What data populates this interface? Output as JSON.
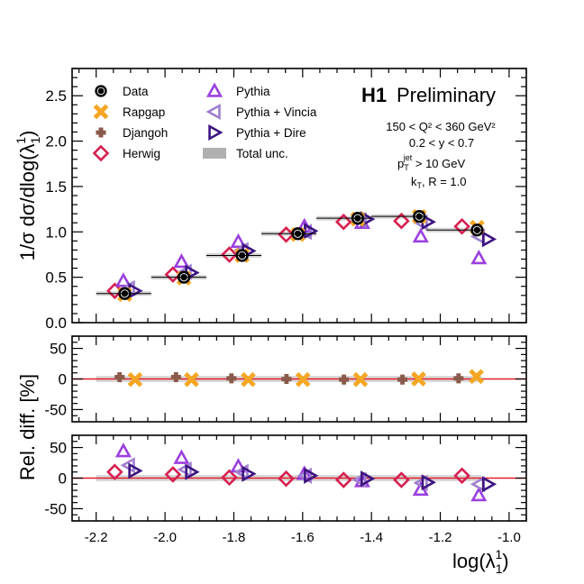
{
  "figure": {
    "brand": "H1",
    "status": "Preliminary",
    "cuts": [
      "150 < Q² < 360 GeV²",
      "0.2 < y < 0.7",
      "p_T^jet > 10 GeV",
      "k_T, R = 1.0"
    ],
    "cut_labels": {
      "q2": "150 < Q² < 360 GeV²",
      "y": "0.2 < y < 0.7",
      "pt_main": "p",
      "pt_sub": "T",
      "pt_sup": "jet",
      "pt_rest": " > 10 GeV",
      "kt_main": "k",
      "kt_sub": "T",
      "kt_rest": ", R = 1.0"
    }
  },
  "chart_data": [
    {
      "type": "scatter",
      "panel": "top",
      "ylabel": "1/σ dσ/dlog(λ₁¹)",
      "ylabel_parts": {
        "pre": "1/σ dσ/dlog(λ",
        "sub": "1",
        "sup": "1",
        "post": ")"
      },
      "ylim": [
        0,
        2.8
      ],
      "yticks": [
        "0.0",
        "0.5",
        "1.0",
        "1.5",
        "2.0",
        "2.5"
      ],
      "xlim": [
        -2.27,
        -0.95
      ],
      "bins": [
        [
          -2.2,
          -2.04
        ],
        [
          -2.04,
          -1.88
        ],
        [
          -1.88,
          -1.72
        ],
        [
          -1.72,
          -1.56
        ],
        [
          -1.56,
          -1.4
        ],
        [
          -1.4,
          -1.24
        ],
        [
          -1.24,
          -1.08
        ]
      ],
      "legend": [
        {
          "name": "Data",
          "symbol": "data"
        },
        {
          "name": "Rapgap",
          "symbol": "x"
        },
        {
          "name": "Djangoh",
          "symbol": "plus"
        },
        {
          "name": "Herwig",
          "symbol": "diamond"
        },
        {
          "name": "Pythia",
          "symbol": "tri-up"
        },
        {
          "name": "Pythia + Vincia",
          "symbol": "tri-left"
        },
        {
          "name": "Pythia + Dire",
          "symbol": "tri-right"
        },
        {
          "name": "Total unc.",
          "symbol": "band"
        }
      ],
      "colors": {
        "Data": "#000000",
        "Rapgap": "#f5a623",
        "Djangoh": "#8b5a4a",
        "Herwig": "#d62050",
        "Pythia": "#9b40e0",
        "Pythia + Vincia": "#a080d0",
        "Pythia + Dire": "#3d1480",
        "Total unc.": "#b0b0b0"
      },
      "series": [
        {
          "name": "Data",
          "x": [
            -2.117,
            -1.945,
            -1.776,
            -1.614,
            -1.44,
            -1.261,
            -1.093
          ],
          "values": [
            0.32,
            0.5,
            0.74,
            0.98,
            1.15,
            1.17,
            1.02
          ]
        },
        {
          "name": "Rapgap",
          "x": [
            -2.117,
            -1.945,
            -1.776,
            -1.614,
            -1.44,
            -1.261,
            -1.093
          ],
          "values": [
            0.31,
            0.49,
            0.74,
            0.97,
            1.14,
            1.17,
            1.05
          ]
        },
        {
          "name": "Djangoh",
          "x": [
            -2.117,
            -1.945,
            -1.776,
            -1.614,
            -1.44,
            -1.261,
            -1.093
          ],
          "values": [
            0.32,
            0.5,
            0.74,
            0.98,
            1.15,
            1.17,
            1.02
          ]
        },
        {
          "name": "Herwig",
          "x": [
            -2.146,
            -1.977,
            -1.813,
            -1.648,
            -1.481,
            -1.313,
            -1.137
          ],
          "values": [
            0.35,
            0.53,
            0.75,
            0.97,
            1.11,
            1.12,
            1.06
          ]
        },
        {
          "name": "Pythia",
          "x": [
            -2.121,
            -1.952,
            -1.787,
            -1.595,
            -1.427,
            -1.257,
            -1.088
          ],
          "values": [
            0.46,
            0.67,
            0.89,
            1.06,
            1.1,
            0.95,
            0.71
          ]
        },
        {
          "name": "Pythia + Vincia",
          "x": [
            -2.105,
            -1.94,
            -1.775,
            -1.591,
            -1.432,
            -1.254,
            -1.088
          ],
          "values": [
            0.38,
            0.56,
            0.8,
            1.0,
            1.13,
            1.1,
            0.95
          ]
        },
        {
          "name": "Pythia + Dire",
          "x": [
            -2.089,
            -1.924,
            -1.759,
            -1.579,
            -1.414,
            -1.237,
            -1.061
          ],
          "values": [
            0.35,
            0.55,
            0.79,
            1.01,
            1.14,
            1.11,
            0.92
          ]
        }
      ]
    },
    {
      "type": "scatter",
      "panel": "middle",
      "ylabel": "Rel. diff. [%]",
      "ylim": [
        -70,
        70
      ],
      "yticks": [
        "-50",
        "0",
        "50"
      ],
      "series": [
        {
          "name": "Djangoh",
          "x": [
            -2.132,
            -1.968,
            -1.807,
            -1.647,
            -1.48,
            -1.31,
            -1.147
          ],
          "values": [
            3,
            3,
            1,
            0,
            -1,
            -1,
            1
          ]
        },
        {
          "name": "Rapgap",
          "x": [
            -2.087,
            -1.923,
            -1.758,
            -1.599,
            -1.432,
            -1.263,
            -1.095
          ],
          "values": [
            -1,
            -1,
            -1,
            -1,
            -1,
            0,
            4
          ]
        }
      ]
    },
    {
      "type": "scatter",
      "panel": "bottom",
      "ylabel": "",
      "ylim": [
        -70,
        70
      ],
      "yticks": [
        "-50",
        "0",
        "50"
      ],
      "xlabel": "log(λ₁¹)",
      "xlabel_parts": {
        "pre": "log(λ",
        "sub": "1",
        "sup": "1",
        "post": ")"
      },
      "xticks": [
        -2.2,
        -2.0,
        -1.8,
        -1.6,
        -1.4,
        -1.2,
        -1.0
      ],
      "xtick_labels": [
        "-2.2",
        "-2.0",
        "-1.8",
        "-1.6",
        "-1.4",
        "-1.2",
        "-1.0"
      ],
      "series": [
        {
          "name": "Herwig",
          "x": [
            -2.146,
            -1.977,
            -1.813,
            -1.648,
            -1.481,
            -1.313,
            -1.137
          ],
          "values": [
            10,
            6,
            1,
            -1,
            -3,
            -3,
            4
          ]
        },
        {
          "name": "Pythia",
          "x": [
            -2.121,
            -1.952,
            -1.787,
            -1.595,
            -1.427,
            -1.257,
            -1.088
          ],
          "values": [
            44,
            33,
            19,
            7,
            -5,
            -19,
            -28
          ]
        },
        {
          "name": "Pythia + Vincia",
          "x": [
            -2.105,
            -1.94,
            -1.775,
            -1.591,
            -1.432,
            -1.254,
            -1.088
          ],
          "values": [
            21,
            14,
            10,
            4,
            -3,
            -8,
            -10
          ]
        },
        {
          "name": "Pythia + Dire",
          "x": [
            -2.089,
            -1.924,
            -1.759,
            -1.579,
            -1.414,
            -1.237,
            -1.061
          ],
          "values": [
            12,
            10,
            7,
            4,
            -1,
            -7,
            -10
          ]
        }
      ]
    }
  ]
}
